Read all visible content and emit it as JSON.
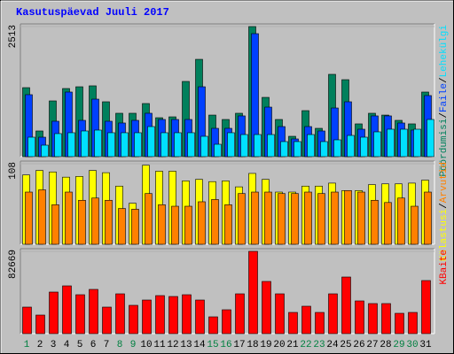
{
  "chart_data": [
    {
      "type": "bar",
      "title": "Kasutuspäevad Juuli 2017",
      "ylim": [
        0,
        2513
      ],
      "yticks": [
        2513
      ],
      "legend_separator": "/",
      "series": [
        {
          "name": "Pöördumisi",
          "color": "#00805c",
          "values": [
            1333,
            496,
            1077,
            1316,
            1350,
            1368,
            1060,
            838,
            838,
            1026,
            752,
            769,
            1453,
            1880,
            803,
            718,
            838,
            2513,
            1145,
            718,
            393,
            889,
            547,
            1590,
            1487,
            633,
            838,
            803,
            701,
            633,
            1248
          ]
        },
        {
          "name": "Faile",
          "color": "#0040ff",
          "values": [
            1197,
            376,
            684,
            1248,
            701,
            1111,
            684,
            650,
            701,
            838,
            718,
            718,
            718,
            1350,
            547,
            547,
            787,
            2376,
            957,
            581,
            342,
            581,
            496,
            940,
            1060,
            530,
            787,
            787,
            650,
            513,
            1180
          ]
        },
        {
          "name": "Lehekülgi",
          "color": "#00e0ff",
          "values": [
            376,
            222,
            445,
            462,
            496,
            513,
            462,
            462,
            462,
            581,
            462,
            462,
            462,
            393,
            239,
            462,
            427,
            427,
            427,
            291,
            291,
            427,
            291,
            325,
            410,
            376,
            479,
            530,
            530,
            530,
            718
          ]
        }
      ]
    },
    {
      "type": "bar",
      "ylim": [
        0,
        108
      ],
      "yticks": [
        108
      ],
      "legend_separator": "/",
      "series": [
        {
          "name": "Külastusi",
          "color": "#ffff00",
          "values": [
            93,
            99,
            97,
            90,
            91,
            99,
            96,
            78,
            55,
            106,
            98,
            98,
            85,
            87,
            84,
            85,
            77,
            95,
            87,
            70,
            70,
            78,
            78,
            82,
            72,
            72,
            80,
            81,
            81,
            82,
            86
          ]
        },
        {
          "name": "Arvutid",
          "color": "#ff8000",
          "values": [
            70,
            73,
            53,
            70,
            59,
            62,
            59,
            48,
            47,
            68,
            53,
            51,
            51,
            57,
            60,
            53,
            68,
            70,
            70,
            68,
            68,
            70,
            68,
            70,
            72,
            70,
            59,
            56,
            62,
            51,
            70
          ]
        }
      ]
    },
    {
      "type": "bar",
      "ylim": [
        0,
        82669
      ],
      "yticks": [
        82669
      ],
      "categories": [
        "1",
        "2",
        "3",
        "4",
        "5",
        "6",
        "7",
        "8",
        "9",
        "10",
        "11",
        "12",
        "13",
        "14",
        "15",
        "16",
        "17",
        "18",
        "19",
        "20",
        "21",
        "22",
        "23",
        "24",
        "25",
        "26",
        "27",
        "28",
        "29",
        "30",
        "31"
      ],
      "category_colors": [
        "#008040",
        "#000000",
        "#000000",
        "#000000",
        "#000000",
        "#000000",
        "#000000",
        "#008040",
        "#008040",
        "#000000",
        "#000000",
        "#000000",
        "#000000",
        "#000000",
        "#008040",
        "#008040",
        "#000000",
        "#000000",
        "#000000",
        "#000000",
        "#000000",
        "#008040",
        "#008040",
        "#000000",
        "#000000",
        "#000000",
        "#000000",
        "#000000",
        "#008040",
        "#008040",
        "#000000"
      ],
      "series": [
        {
          "name": "KBaite",
          "color": "#ff0000",
          "values": [
            26670,
            18670,
            41780,
            48000,
            39100,
            44450,
            26670,
            40000,
            28450,
            33780,
            38220,
            37330,
            39100,
            33780,
            16890,
            24000,
            40000,
            82669,
            52450,
            40000,
            21330,
            27560,
            21330,
            40000,
            56890,
            32890,
            30220,
            30220,
            20440,
            21330,
            53340
          ]
        }
      ]
    }
  ]
}
